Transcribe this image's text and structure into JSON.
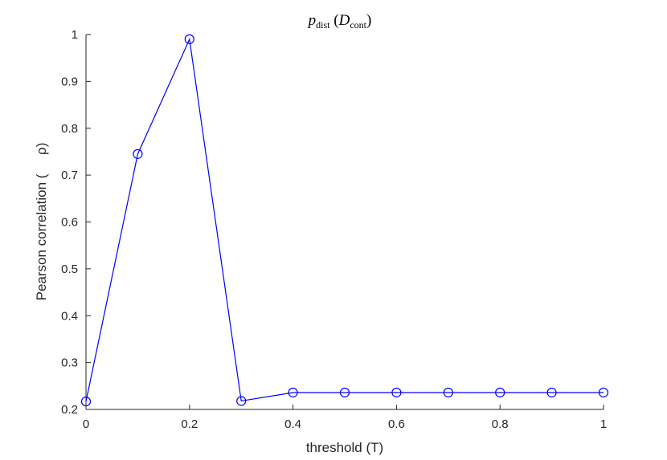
{
  "chart_data": {
    "type": "line",
    "title": {
      "base": "p",
      "sub": "dist",
      "open": " (",
      "inner": "D",
      "inner_sub": "cont",
      "close": ")"
    },
    "xlabel": "threshold (T)",
    "ylabel": "Pearson correlation (     ρ)",
    "xlim": [
      0,
      1
    ],
    "ylim": [
      0.2,
      1
    ],
    "x_ticks": [
      "0",
      "0.2",
      "0.4",
      "0.6",
      "0.8",
      "1"
    ],
    "y_ticks": [
      "0.2",
      "0.3",
      "0.4",
      "0.5",
      "0.6",
      "0.7",
      "0.8",
      "0.9",
      "1"
    ],
    "grid": false,
    "series": [
      {
        "color": "#0000ff",
        "marker": "circle",
        "x": [
          0,
          0.1,
          0.2,
          0.3,
          0.4,
          0.5,
          0.6,
          0.7,
          0.8,
          0.9,
          1.0
        ],
        "y": [
          0.217,
          0.745,
          0.99,
          0.218,
          0.236,
          0.236,
          0.236,
          0.236,
          0.236,
          0.236,
          0.236
        ]
      }
    ]
  }
}
